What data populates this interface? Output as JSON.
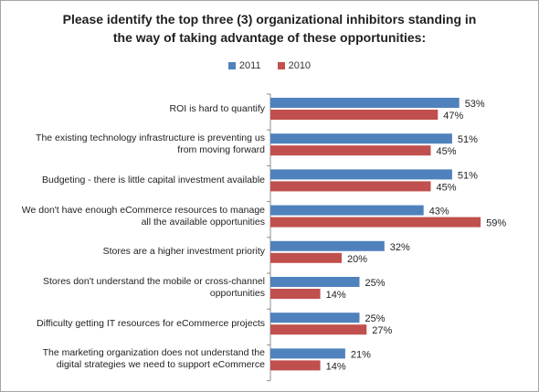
{
  "chart_data": {
    "type": "bar",
    "orientation": "horizontal",
    "title": "Please identify the top three (3) organizational inhibitors standing in the way of taking advantage of these opportunities:",
    "title_lines": [
      "Please identify the top three (3) organizational inhibitors standing in",
      "the way of taking advantage of these opportunities:"
    ],
    "categories": [
      "ROI is hard to quantify",
      "The existing technology infrastructure is preventing us from moving forward",
      "Budgeting - there is little capital investment available",
      "We don't have enough eCommerce resources to manage all the available opportunities",
      "Stores are a higher investment priority",
      "Stores don't understand the mobile or cross-channel opportunities",
      "Difficulty getting IT resources for eCommerce projects",
      "The marketing organization does not understand the digital strategies we need to support eCommerce"
    ],
    "category_lines": [
      [
        "ROI is hard to quantify"
      ],
      [
        "The existing technology infrastructure is preventing us",
        "from moving forward"
      ],
      [
        "Budgeting - there is little capital investment available"
      ],
      [
        "We don't have enough eCommerce resources to manage",
        "all the available opportunities"
      ],
      [
        "Stores are a higher investment priority"
      ],
      [
        "Stores don't understand the mobile or cross-channel",
        "opportunities"
      ],
      [
        "Difficulty getting IT resources for eCommerce projects"
      ],
      [
        "The marketing organization does not understand the",
        "digital strategies we need to support eCommerce"
      ]
    ],
    "series": [
      {
        "name": "2011",
        "color": "#4f81bd",
        "values": [
          53,
          51,
          51,
          43,
          32,
          25,
          25,
          21
        ],
        "labels": [
          "53%",
          "51%",
          "51%",
          "43%",
          "32%",
          "25%",
          "25%",
          "21%"
        ]
      },
      {
        "name": "2010",
        "color": "#c0504d",
        "values": [
          47,
          45,
          45,
          59,
          20,
          14,
          27,
          14
        ],
        "labels": [
          "47%",
          "45%",
          "45%",
          "59%",
          "20%",
          "14%",
          "27%",
          "14%"
        ]
      }
    ],
    "legend_position": "top",
    "xlim": [
      0,
      70
    ],
    "grid": false,
    "unit": "%"
  }
}
